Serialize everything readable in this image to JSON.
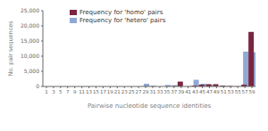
{
  "chart_data": {
    "type": "bar",
    "xlabel": "Pairwise nucleotide sequence identities",
    "ylabel": "No. pair sequences",
    "categories": [
      "1",
      "3",
      "5",
      "7",
      "9",
      "11",
      "13",
      "15",
      "17",
      "19",
      "21",
      "23",
      "25",
      "27",
      "29",
      "31",
      "33",
      "35",
      "37",
      "39",
      "41",
      "43",
      "45",
      "47",
      "49",
      "51",
      "53",
      "55",
      "57",
      "59"
    ],
    "series": [
      {
        "name": "Frequency for 'hetero' pairs",
        "color": "#8fa8d4",
        "values": [
          0,
          0,
          0,
          0,
          0,
          0,
          0,
          0,
          0,
          0,
          0,
          0,
          0,
          0,
          900,
          200,
          0,
          500,
          400,
          0,
          100,
          2200,
          900,
          600,
          50,
          100,
          50,
          20,
          11500,
          11300
        ]
      },
      {
        "name": "Frequency for 'homo' pairs",
        "color": "#7b2540",
        "values": [
          0,
          0,
          0,
          0,
          0,
          0,
          0,
          0,
          0,
          0,
          0,
          0,
          0,
          0,
          50,
          50,
          0,
          0,
          100,
          1600,
          0,
          250,
          600,
          750,
          750,
          300,
          150,
          50,
          600,
          18000
        ]
      }
    ],
    "ylim": [
      0,
      25000
    ],
    "yticks": [
      0,
      {
        "value": 5000,
        "label": "5,000"
      },
      {
        "value": 10000,
        "label": "10,000"
      },
      {
        "value": 15000,
        "label": "15,000"
      },
      {
        "value": 20000,
        "label": "20,000"
      },
      {
        "value": 25000,
        "label": "25,000"
      }
    ],
    "grid": false,
    "legend": "upper left"
  }
}
